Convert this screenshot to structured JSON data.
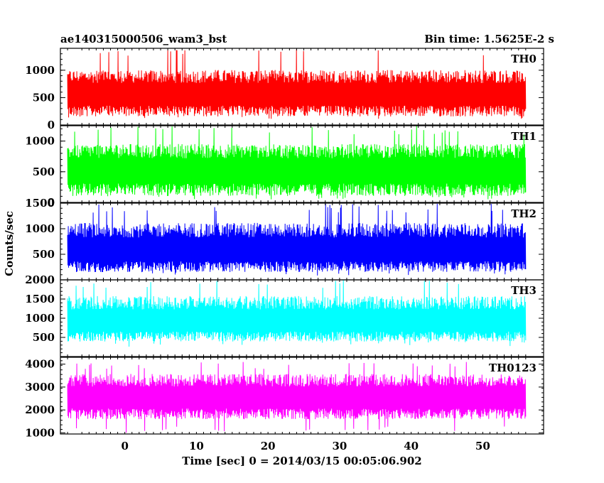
{
  "header": {
    "title": "ae140315000506_wam3_bst",
    "bin_time": "Bin time: 1.5625E-2 s"
  },
  "axes": {
    "xlabel": "Time [sec] 0 = 2014/03/15 00:05:06.902",
    "ylabel": "Counts/sec"
  },
  "chart_data": {
    "type": "line",
    "title": "ae140315000506_wam3_bst",
    "subtitle": "Bin time: 1.5625E-2 s",
    "xlabel": "Time [sec] 0 = 2014/03/15 00:05:06.902",
    "ylabel": "Counts/sec",
    "x_range": [
      -8,
      56
    ],
    "xlim": [
      -9,
      58.5
    ],
    "x_ticks": [
      0,
      10,
      20,
      30,
      40,
      50
    ],
    "grid": false,
    "panels": [
      {
        "name": "TH0",
        "color": "#ff0000",
        "ylim": [
          0,
          1400
        ],
        "y_ticks": [
          0,
          500,
          1000
        ],
        "baseline": 540,
        "typical_low": 200,
        "typical_high": 950,
        "min": 110,
        "max": 1400
      },
      {
        "name": "TH1",
        "color": "#00ff00",
        "ylim": [
          0,
          1250
        ],
        "y_ticks": [
          0,
          500,
          1000
        ],
        "baseline": 500,
        "typical_low": 150,
        "typical_high": 900,
        "min": 40,
        "max": 1250
      },
      {
        "name": "TH2",
        "color": "#0000ff",
        "ylim": [
          0,
          1500
        ],
        "y_ticks": [
          500,
          1000,
          1500
        ],
        "baseline": 560,
        "typical_low": 200,
        "typical_high": 1050,
        "min": 80,
        "max": 1500
      },
      {
        "name": "TH3",
        "color": "#00ffff",
        "ylim": [
          0,
          2000
        ],
        "y_ticks": [
          500,
          1000,
          1500,
          2000
        ],
        "baseline": 900,
        "typical_low": 450,
        "typical_high": 1500,
        "min": 250,
        "max": 2000
      },
      {
        "name": "TH0123",
        "color": "#ff00ff",
        "ylim": [
          950,
          4300
        ],
        "y_ticks": [
          1000,
          2000,
          3000,
          4000
        ],
        "baseline": 2500,
        "typical_low": 1700,
        "typical_high": 3450,
        "min": 1000,
        "max": 4100
      }
    ]
  }
}
